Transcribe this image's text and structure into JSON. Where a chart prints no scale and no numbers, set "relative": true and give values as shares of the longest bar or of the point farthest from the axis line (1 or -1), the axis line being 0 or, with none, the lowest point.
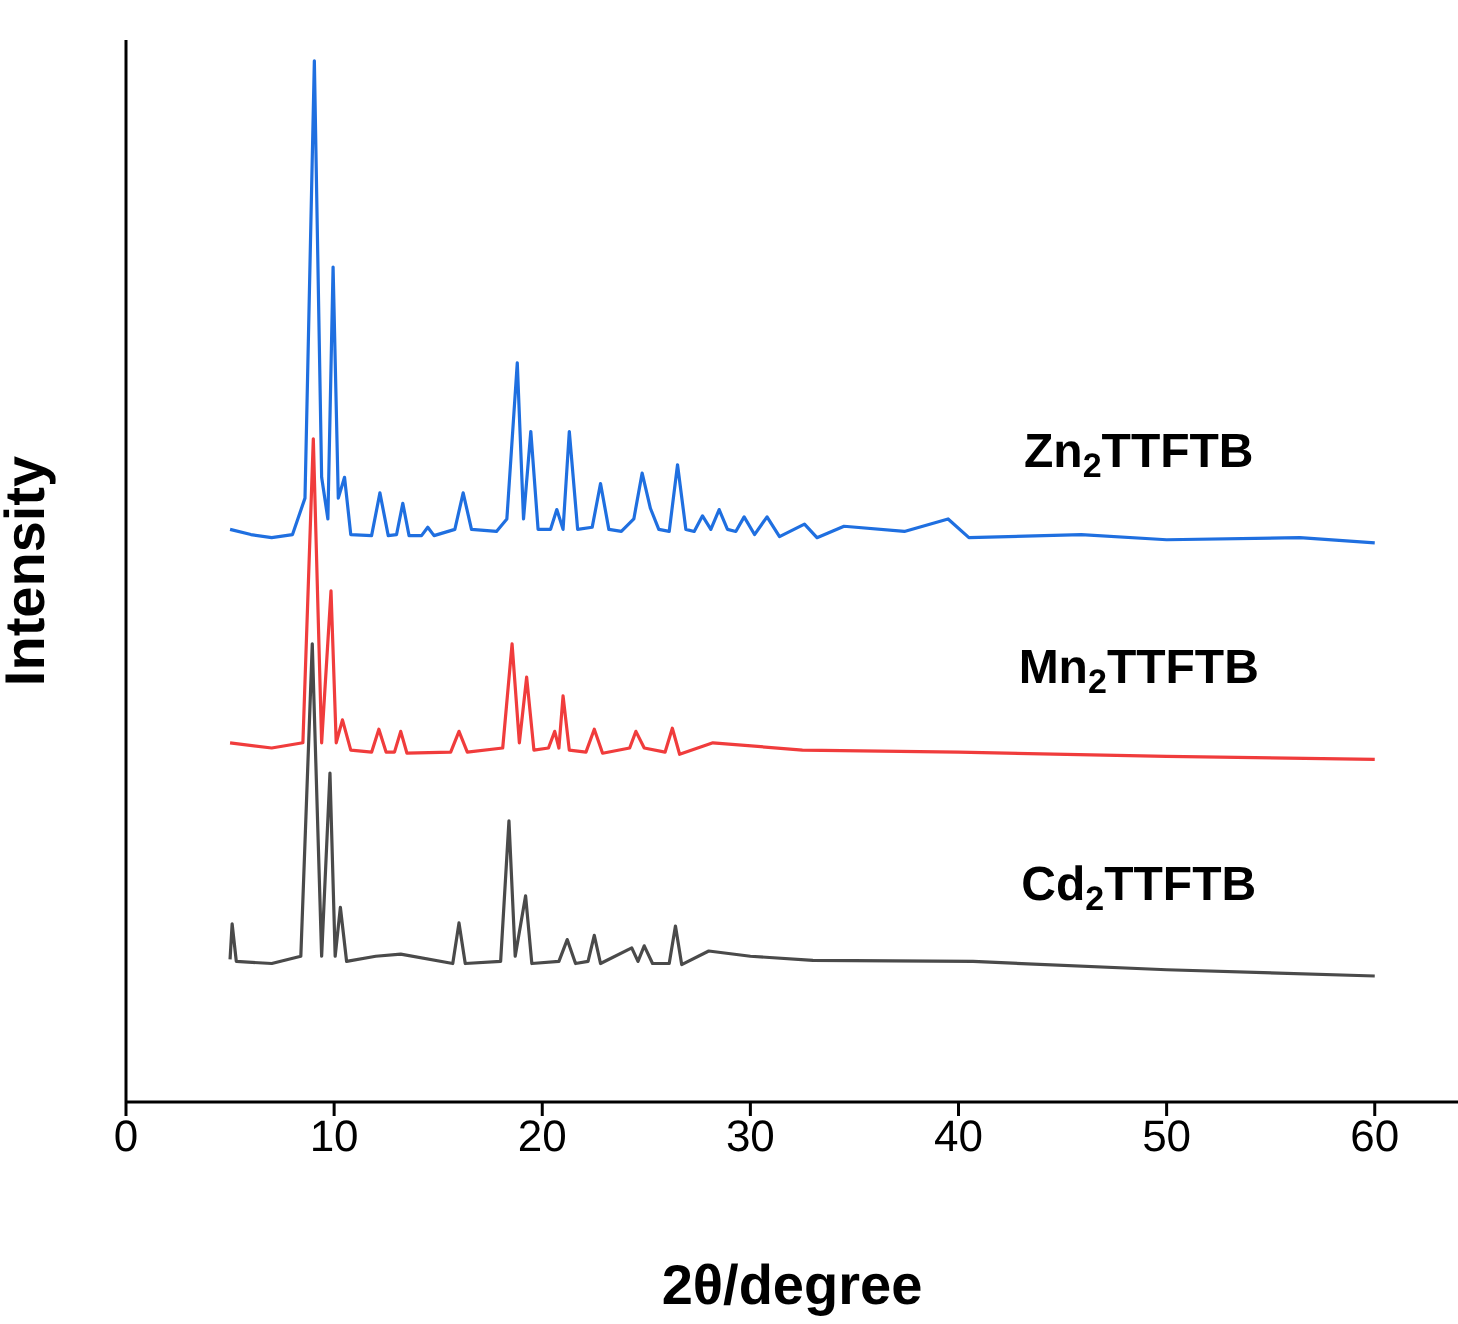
{
  "chart_data": {
    "type": "line",
    "xlabel": "2θ/degree",
    "ylabel": "Intensity",
    "relative": true,
    "xlim": [
      0,
      64
    ],
    "xticks": [
      0,
      10,
      20,
      30,
      40,
      50,
      60
    ],
    "grid": false,
    "legend": false,
    "marker": "none",
    "line_style": "solid",
    "series": [
      {
        "name": "Zn$_{2}$TTFTB",
        "color": "#1f6fe0",
        "x": [
          5,
          6,
          7,
          8,
          8.6,
          9.05,
          9.4,
          9.7,
          9.95,
          10.2,
          10.5,
          10.8,
          11.8,
          12.2,
          12.6,
          13.0,
          13.3,
          13.6,
          14.2,
          14.5,
          14.8,
          15.8,
          16.2,
          16.6,
          17.8,
          18.3,
          18.8,
          19.1,
          19.45,
          19.8,
          20.4,
          20.7,
          21.0,
          21.3,
          21.7,
          22.4,
          22.8,
          23.2,
          23.8,
          24.4,
          24.8,
          25.2,
          25.6,
          26.1,
          26.5,
          26.9,
          27.3,
          27.7,
          28.1,
          28.5,
          28.9,
          29.3,
          29.7,
          30.2,
          30.8,
          31.4,
          32.6,
          33.2,
          34.5,
          37.4,
          39.5,
          40.5,
          45.9,
          50,
          56.4,
          60
        ],
        "values": [
          0.55,
          0.545,
          0.542,
          0.545,
          0.58,
          1.0,
          0.6,
          0.56,
          0.802,
          0.58,
          0.6,
          0.545,
          0.544,
          0.585,
          0.544,
          0.545,
          0.575,
          0.544,
          0.544,
          0.552,
          0.544,
          0.55,
          0.585,
          0.55,
          0.548,
          0.56,
          0.71,
          0.56,
          0.644,
          0.55,
          0.55,
          0.569,
          0.55,
          0.644,
          0.55,
          0.552,
          0.594,
          0.55,
          0.548,
          0.56,
          0.604,
          0.57,
          0.55,
          0.548,
          0.612,
          0.55,
          0.548,
          0.563,
          0.55,
          0.569,
          0.55,
          0.548,
          0.562,
          0.545,
          0.562,
          0.543,
          0.555,
          0.542,
          0.553,
          0.548,
          0.56,
          0.542,
          0.545,
          0.54,
          0.542,
          0.537
        ]
      },
      {
        "name": "Mn$_{2}$TTFTB",
        "color": "#f03c3c",
        "x": [
          5,
          7,
          8.5,
          9.0,
          9.4,
          9.85,
          10.1,
          10.4,
          10.8,
          11.8,
          12.15,
          12.5,
          12.9,
          13.2,
          13.5,
          15.6,
          16.0,
          16.4,
          18.1,
          18.55,
          18.9,
          19.25,
          19.6,
          20.3,
          20.6,
          20.8,
          21.0,
          21.3,
          22.1,
          22.5,
          22.9,
          24.2,
          24.5,
          24.9,
          25.9,
          26.25,
          26.6,
          28.2,
          32.5,
          40,
          50,
          60
        ],
        "values": [
          0.345,
          0.34,
          0.345,
          0.637,
          0.345,
          0.491,
          0.345,
          0.367,
          0.338,
          0.336,
          0.358,
          0.336,
          0.336,
          0.356,
          0.335,
          0.336,
          0.356,
          0.336,
          0.34,
          0.44,
          0.345,
          0.408,
          0.338,
          0.34,
          0.356,
          0.34,
          0.39,
          0.338,
          0.336,
          0.358,
          0.335,
          0.34,
          0.356,
          0.34,
          0.336,
          0.359,
          0.334,
          0.345,
          0.338,
          0.336,
          0.332,
          0.329
        ]
      },
      {
        "name": "Cd$_{2}$TTFTB",
        "color": "#4a4a4a",
        "x": [
          5,
          5.1,
          5.3,
          7,
          8.4,
          8.95,
          9.4,
          9.8,
          10.05,
          10.3,
          10.6,
          12,
          13.2,
          15.7,
          16.0,
          16.3,
          18.0,
          18.4,
          18.7,
          19.2,
          19.5,
          20.8,
          21.2,
          21.6,
          22.2,
          22.5,
          22.8,
          24.3,
          24.6,
          24.9,
          25.3,
          26.1,
          26.4,
          26.7,
          28,
          30,
          33,
          40.7,
          50,
          60
        ],
        "values": [
          0.137,
          0.171,
          0.135,
          0.133,
          0.14,
          0.44,
          0.14,
          0.316,
          0.14,
          0.187,
          0.135,
          0.14,
          0.142,
          0.133,
          0.172,
          0.133,
          0.135,
          0.27,
          0.14,
          0.198,
          0.133,
          0.135,
          0.156,
          0.133,
          0.135,
          0.16,
          0.133,
          0.148,
          0.135,
          0.15,
          0.133,
          0.133,
          0.169,
          0.132,
          0.145,
          0.14,
          0.136,
          0.135,
          0.127,
          0.121
        ]
      }
    ]
  }
}
